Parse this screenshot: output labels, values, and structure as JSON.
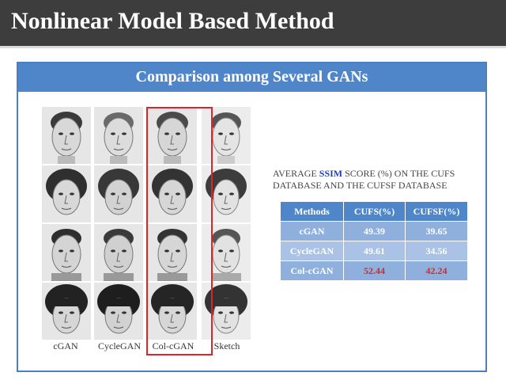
{
  "header": {
    "title": "Nonlinear Model Based Method"
  },
  "panel": {
    "title": "Comparison among Several GANs",
    "column_labels": [
      "cGAN",
      "CycleGAN",
      "Col-cGAN",
      "Sketch"
    ],
    "highlighted_column": "Col-cGAN"
  },
  "caption": {
    "prefix": "AVERAGE ",
    "emphasis": "SSIM",
    "suffix": " SCORE (%) ON THE CUFS DATABASE AND THE CUFSF DATABASE"
  },
  "table": {
    "headers": [
      "Methods",
      "CUFS(%)",
      "CUFSF(%)"
    ],
    "rows": [
      [
        "cGAN",
        "49.39",
        "39.65"
      ],
      [
        "CycleGAN",
        "49.61",
        "34.56"
      ],
      [
        "Col-cGAN",
        "52.44",
        "42.24"
      ]
    ],
    "highlight_color": "#d8262c"
  },
  "colors": {
    "title_bar": "#3d3d3d",
    "panel_header": "#4f86c9",
    "table_cell": "#8fb0dc"
  }
}
